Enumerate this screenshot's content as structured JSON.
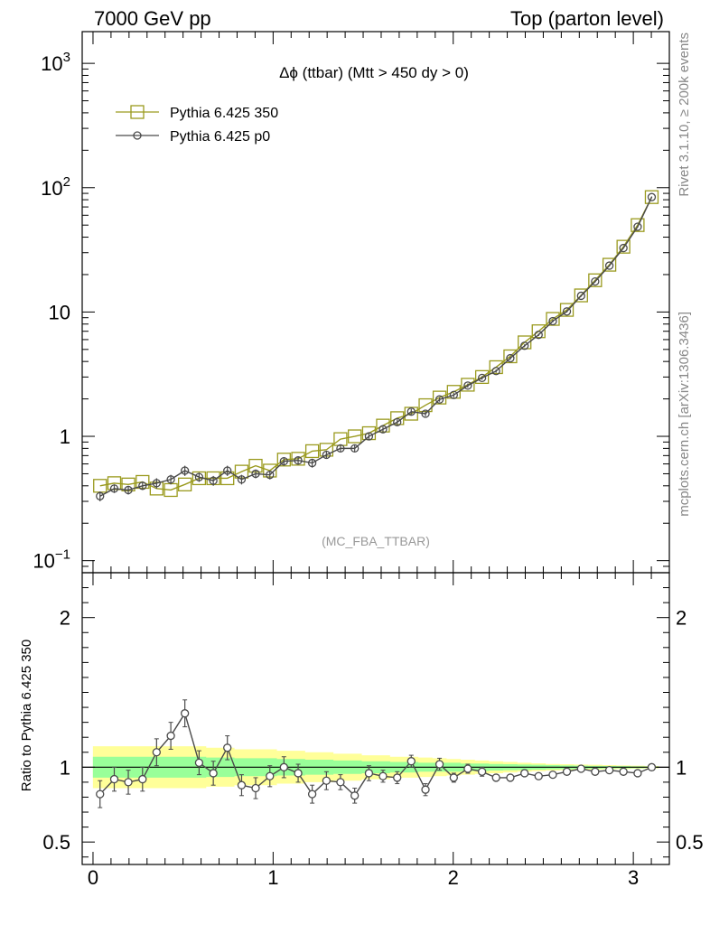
{
  "header": {
    "left": "7000 GeV pp",
    "right": "Top (parton level)"
  },
  "side_labels": {
    "rivet": "Rivet 3.1.10, ≥ 200k events",
    "mcplots": "mcplots.cern.ch [arXiv:1306.3436]"
  },
  "chart_data": [
    {
      "type": "line",
      "title": "Δϕ (ttbar) (Mtt > 450 dy > 0)",
      "annotation": "(MC_FBA_TTBAR)",
      "yscale": "log",
      "ylim": [
        0.08,
        1800
      ],
      "xlim": [
        -0.06,
        3.2
      ],
      "legend_position": "top-left",
      "y_ticks": [
        {
          "value": 0.1,
          "base": "10",
          "exp": "−1"
        },
        {
          "value": 1,
          "label": "1"
        },
        {
          "value": 10,
          "label": "10"
        },
        {
          "value": 100,
          "base": "10",
          "exp": "2"
        },
        {
          "value": 1000,
          "base": "10",
          "exp": "3"
        }
      ],
      "x": [
        0.039,
        0.118,
        0.196,
        0.275,
        0.353,
        0.432,
        0.51,
        0.589,
        0.668,
        0.746,
        0.825,
        0.903,
        0.982,
        1.06,
        1.139,
        1.217,
        1.296,
        1.374,
        1.453,
        1.532,
        1.61,
        1.689,
        1.767,
        1.846,
        1.924,
        2.003,
        2.081,
        2.16,
        2.238,
        2.317,
        2.396,
        2.474,
        2.553,
        2.631,
        2.71,
        2.788,
        2.867,
        2.945,
        3.024,
        3.102
      ],
      "series": [
        {
          "name": "Pythia 6.425 350",
          "color": "#9a9a1e",
          "marker": "square",
          "values": [
            0.4,
            0.42,
            0.41,
            0.43,
            0.38,
            0.37,
            0.41,
            0.46,
            0.46,
            0.46,
            0.52,
            0.58,
            0.53,
            0.65,
            0.66,
            0.76,
            0.78,
            0.95,
            1.0,
            1.06,
            1.22,
            1.4,
            1.52,
            1.78,
            2.05,
            2.28,
            2.6,
            3.0,
            3.6,
            4.4,
            5.7,
            7.0,
            8.8,
            10.4,
            13.6,
            18.0,
            24.0,
            33.5,
            50.0,
            84.0
          ]
        },
        {
          "name": "Pythia 6.425 p0",
          "color": "#4a4a4a",
          "marker": "circle",
          "values": [
            0.33,
            0.38,
            0.37,
            0.4,
            0.42,
            0.45,
            0.53,
            0.47,
            0.44,
            0.53,
            0.45,
            0.5,
            0.49,
            0.63,
            0.64,
            0.61,
            0.71,
            0.8,
            0.8,
            1.0,
            1.14,
            1.3,
            1.58,
            1.52,
            1.98,
            2.15,
            2.56,
            2.95,
            3.35,
            4.25,
            5.35,
            6.55,
            8.45,
            10.1,
            13.5,
            17.6,
            23.6,
            32.7,
            48.5,
            84.0
          ],
          "errors": [
            0.03,
            0.03,
            0.03,
            0.03,
            0.04,
            0.04,
            0.05,
            0.04,
            0.04,
            0.05,
            0.04,
            0.04,
            0.04,
            0.05,
            0.05,
            0.05,
            0.05,
            0.05,
            0.05,
            0.06,
            0.06,
            0.07,
            0.08,
            0.07,
            0.08,
            0.09,
            0.1,
            0.1,
            0.1,
            0.12,
            0.14,
            0.15,
            0.2,
            0.2,
            0.25,
            0.3,
            0.4,
            0.5,
            0.7,
            1.0
          ]
        }
      ]
    },
    {
      "type": "line",
      "ylabel": "Ratio to Pythia 6.425 350",
      "ylim": [
        0.35,
        2.3
      ],
      "xlim": [
        -0.06,
        3.2
      ],
      "x_ticks": [
        0,
        1,
        2,
        3
      ],
      "y_ticks": [
        0.5,
        1,
        2
      ],
      "band_colors": {
        "outer": "#ffff99",
        "inner": "#99ff99"
      },
      "band_inner_halfwidth": [
        0.07,
        0.07,
        0.07,
        0.07,
        0.07,
        0.07,
        0.07,
        0.07,
        0.065,
        0.065,
        0.06,
        0.06,
        0.06,
        0.055,
        0.055,
        0.05,
        0.05,
        0.045,
        0.045,
        0.04,
        0.04,
        0.035,
        0.035,
        0.03,
        0.03,
        0.03,
        0.025,
        0.025,
        0.022,
        0.02,
        0.018,
        0.016,
        0.014,
        0.012,
        0.01,
        0.009,
        0.008,
        0.007,
        0.006,
        0.005
      ],
      "band_outer_halfwidth": [
        0.14,
        0.14,
        0.14,
        0.14,
        0.14,
        0.14,
        0.14,
        0.14,
        0.13,
        0.13,
        0.12,
        0.12,
        0.12,
        0.11,
        0.11,
        0.1,
        0.1,
        0.09,
        0.09,
        0.08,
        0.08,
        0.07,
        0.07,
        0.065,
        0.06,
        0.055,
        0.05,
        0.045,
        0.04,
        0.035,
        0.03,
        0.026,
        0.022,
        0.02,
        0.018,
        0.016,
        0.014,
        0.012,
        0.01,
        0.008
      ],
      "series": [
        {
          "name": "Pythia 6.425 p0",
          "color": "#4a4a4a",
          "values": [
            0.82,
            0.92,
            0.9,
            0.92,
            1.1,
            1.21,
            1.36,
            1.03,
            0.96,
            1.13,
            0.88,
            0.86,
            0.94,
            1.0,
            0.96,
            0.82,
            0.91,
            0.9,
            0.81,
            0.96,
            0.94,
            0.93,
            1.04,
            0.85,
            1.02,
            0.93,
            0.99,
            0.97,
            0.93,
            0.93,
            0.96,
            0.94,
            0.95,
            0.97,
            0.99,
            0.97,
            0.98,
            0.97,
            0.96,
            1.0
          ],
          "errors": [
            0.09,
            0.08,
            0.08,
            0.08,
            0.09,
            0.09,
            0.09,
            0.08,
            0.08,
            0.08,
            0.07,
            0.07,
            0.07,
            0.07,
            0.06,
            0.06,
            0.06,
            0.05,
            0.05,
            0.05,
            0.04,
            0.04,
            0.04,
            0.04,
            0.04,
            0.03,
            0.03,
            0.03,
            0.02,
            0.02,
            0.02,
            0.015,
            0.015,
            0.012,
            0.012,
            0.01,
            0.01,
            0.01,
            0.01,
            0.01
          ]
        }
      ]
    }
  ]
}
